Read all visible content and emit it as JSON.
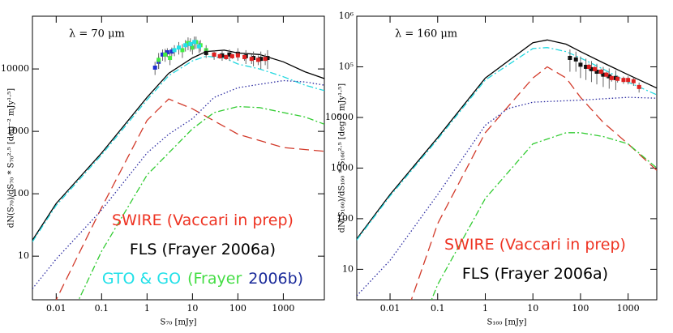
{
  "chart_data": [
    {
      "type": "line",
      "log_x": true,
      "log_y": true,
      "annotation": "λ = 70 μm",
      "x_label": "S₇₀ [mJy]",
      "y_label": "dN(S₇₀)/dS₇₀ * S₇₀²·⁵ [deg⁻² mJy¹·⁵]",
      "xlim": [
        0.003,
        8000
      ],
      "ylim": [
        2,
        70000
      ],
      "xticks": [
        0.01,
        0.1,
        1,
        10,
        100,
        1000
      ],
      "yticks": [
        10,
        100,
        1000,
        10000
      ],
      "series": [
        {
          "color": "#000000",
          "dash": "solid",
          "x": [
            0.003,
            0.01,
            0.1,
            1,
            3,
            10,
            20,
            50,
            100,
            300,
            1000,
            3000,
            8000
          ],
          "values": [
            18,
            70,
            450,
            3500,
            8500,
            15000,
            19000,
            20000,
            18000,
            17000,
            13000,
            9000,
            7000
          ]
        },
        {
          "color": "#22d8e0",
          "dash": "dashdot",
          "x": [
            0.003,
            0.01,
            0.1,
            1,
            3,
            10,
            20,
            50,
            100,
            300,
            1000,
            3000,
            8000
          ],
          "values": [
            17,
            65,
            420,
            3200,
            7800,
            13500,
            16000,
            15000,
            12000,
            10000,
            7500,
            5500,
            4500
          ]
        },
        {
          "color": "#d23a2a",
          "dash": "dashed",
          "x": [
            0.006,
            0.01,
            0.1,
            1,
            3,
            10,
            100,
            1000,
            8000
          ],
          "values": [
            1,
            2,
            60,
            1500,
            3300,
            2300,
            900,
            550,
            480
          ]
        },
        {
          "color": "#2a2aa0",
          "dash": "dotted",
          "x": [
            0.003,
            0.01,
            0.1,
            1,
            3,
            10,
            30,
            100,
            1000,
            3000,
            8000
          ],
          "values": [
            3,
            9,
            55,
            450,
            900,
            1600,
            3500,
            5000,
            6500,
            6200,
            5500
          ]
        },
        {
          "color": "#33cc33",
          "dash": "dashdot",
          "x": [
            0.02,
            0.1,
            1,
            10,
            30,
            100,
            300,
            1000,
            3000,
            8000
          ],
          "values": [
            1,
            12,
            200,
            1100,
            2000,
            2500,
            2400,
            2000,
            1700,
            1300
          ]
        }
      ],
      "points": [
        {
          "color": "#1f2fd0",
          "x": [
            1.5,
            1.8,
            2.2,
            2.8,
            3.5
          ],
          "values": [
            10500,
            13000,
            17000,
            18500,
            19000
          ],
          "errors": [
            2500,
            3000,
            3500,
            3000,
            3000
          ]
        },
        {
          "color": "#44ee44",
          "x": [
            1.8,
            2.5,
            3.2,
            6,
            8,
            10,
            12,
            15,
            20
          ],
          "values": [
            14000,
            17000,
            15000,
            20000,
            26000,
            22000,
            27000,
            24000,
            20000
          ],
          "errors": [
            4000,
            4000,
            3500,
            5000,
            6000,
            5000,
            6000,
            5000,
            4000
          ]
        },
        {
          "color": "#22e0e8",
          "x": [
            4,
            5,
            7,
            9,
            11,
            14
          ],
          "values": [
            20000,
            22000,
            24000,
            25000,
            27000,
            23000
          ],
          "errors": [
            4000,
            5000,
            5000,
            6000,
            6000,
            5000
          ]
        },
        {
          "color": "#111111",
          "x": [
            20,
            30,
            45,
            65,
            100,
            150,
            220,
            320,
            450
          ],
          "values": [
            18000,
            17000,
            16500,
            17000,
            17500,
            16000,
            15000,
            14500,
            15000
          ],
          "errors": [
            3000,
            3000,
            3000,
            3500,
            4000,
            4000,
            4000,
            4500,
            5000
          ]
        },
        {
          "color": "#e02020",
          "x": [
            30,
            40,
            55,
            75,
            100,
            140,
            200,
            280,
            400
          ],
          "values": [
            17000,
            16000,
            15500,
            16000,
            16500,
            15500,
            14500,
            14000,
            14500
          ],
          "errors": [
            1500,
            1500,
            1500,
            1500,
            2000,
            2000,
            2500,
            2500,
            3000
          ]
        }
      ],
      "legend_texts": [
        {
          "parts": [
            {
              "text": "SWIRE (Vaccari in prep)",
              "color": "#ee3322"
            }
          ]
        },
        {
          "parts": [
            {
              "text": "FLS (Frayer 2006a)",
              "color": "#000000"
            }
          ]
        },
        {
          "parts": [
            {
              "text": "GTO & GO",
              "color": "#22e0e8"
            },
            {
              "text": "(Frayer",
              "color": "#44dd44"
            },
            {
              "text": "2006b)",
              "color": "#1a2a9a"
            }
          ]
        }
      ]
    },
    {
      "type": "line",
      "log_x": true,
      "log_y": true,
      "annotation": "λ = 160 μm",
      "x_label": "S₁₆₀ [mJy]",
      "y_label": "dN(S₁₆₀)/dS₁₆₀ * S₁₆₀²·⁵ [deg⁻² mJy¹·⁵]",
      "xlim": [
        0.002,
        4000
      ],
      "ylim": [
        2.5,
        1000000
      ],
      "xticks": [
        0.01,
        0.1,
        1,
        10,
        100,
        1000
      ],
      "yticks": [
        10,
        100,
        1000,
        10000,
        {
          "value": 100000,
          "label": "10⁵"
        },
        {
          "value": 1000000,
          "label": "10⁶"
        }
      ],
      "series": [
        {
          "color": "#000000",
          "dash": "solid",
          "x": [
            0.002,
            0.01,
            0.1,
            1,
            10,
            20,
            50,
            100,
            300,
            1000,
            4000
          ],
          "values": [
            40,
            300,
            4000,
            60000,
            300000,
            340000,
            280000,
            200000,
            120000,
            70000,
            38000
          ]
        },
        {
          "color": "#22d8e0",
          "dash": "dashdot",
          "x": [
            0.002,
            0.01,
            0.1,
            1,
            10,
            20,
            50,
            100,
            300,
            1000,
            4000
          ],
          "values": [
            38,
            280,
            3700,
            55000,
            230000,
            240000,
            200000,
            150000,
            90000,
            50000,
            28000
          ]
        },
        {
          "color": "#d23a2a",
          "dash": "dashed",
          "x": [
            0.02,
            0.1,
            1,
            10,
            20,
            50,
            100,
            300,
            1000,
            4000
          ],
          "values": [
            1,
            80,
            5000,
            60000,
            100000,
            60000,
            25000,
            8000,
            3000,
            900
          ]
        },
        {
          "color": "#2a2aa0",
          "dash": "dotted",
          "x": [
            0.002,
            0.01,
            0.1,
            1,
            3,
            10,
            100,
            1000,
            4000
          ],
          "values": [
            3,
            15,
            300,
            7000,
            15000,
            20000,
            22000,
            25000,
            24000
          ]
        },
        {
          "color": "#33cc33",
          "dash": "dashdot",
          "x": [
            0.05,
            0.1,
            1,
            10,
            50,
            100,
            300,
            1000,
            4000
          ],
          "values": [
            1,
            5,
            250,
            3000,
            5000,
            5000,
            4200,
            3000,
            1000
          ]
        }
      ],
      "points": [
        {
          "color": "#111111",
          "x": [
            60,
            80,
            100,
            130,
            170,
            220,
            300,
            400,
            550
          ],
          "values": [
            150000,
            140000,
            110000,
            100000,
            90000,
            80000,
            70000,
            65000,
            60000
          ],
          "errors": [
            70000,
            60000,
            50000,
            45000,
            40000,
            35000,
            30000,
            28000,
            25000
          ]
        },
        {
          "color": "#e02020",
          "x": [
            150,
            200,
            270,
            350,
            450,
            600,
            800,
            1000,
            1300,
            1700
          ],
          "values": [
            100000,
            90000,
            80000,
            70000,
            60000,
            58000,
            55000,
            55000,
            52000,
            40000
          ],
          "errors": [
            15000,
            12000,
            12000,
            10000,
            9000,
            9000,
            9000,
            10000,
            10000,
            9000
          ]
        }
      ],
      "legend_texts": [
        {
          "parts": [
            {
              "text": "SWIRE (Vaccari in prep)",
              "color": "#ee3322"
            }
          ]
        },
        {
          "parts": [
            {
              "text": "FLS (Frayer 2006a)",
              "color": "#000000"
            }
          ]
        }
      ]
    }
  ]
}
